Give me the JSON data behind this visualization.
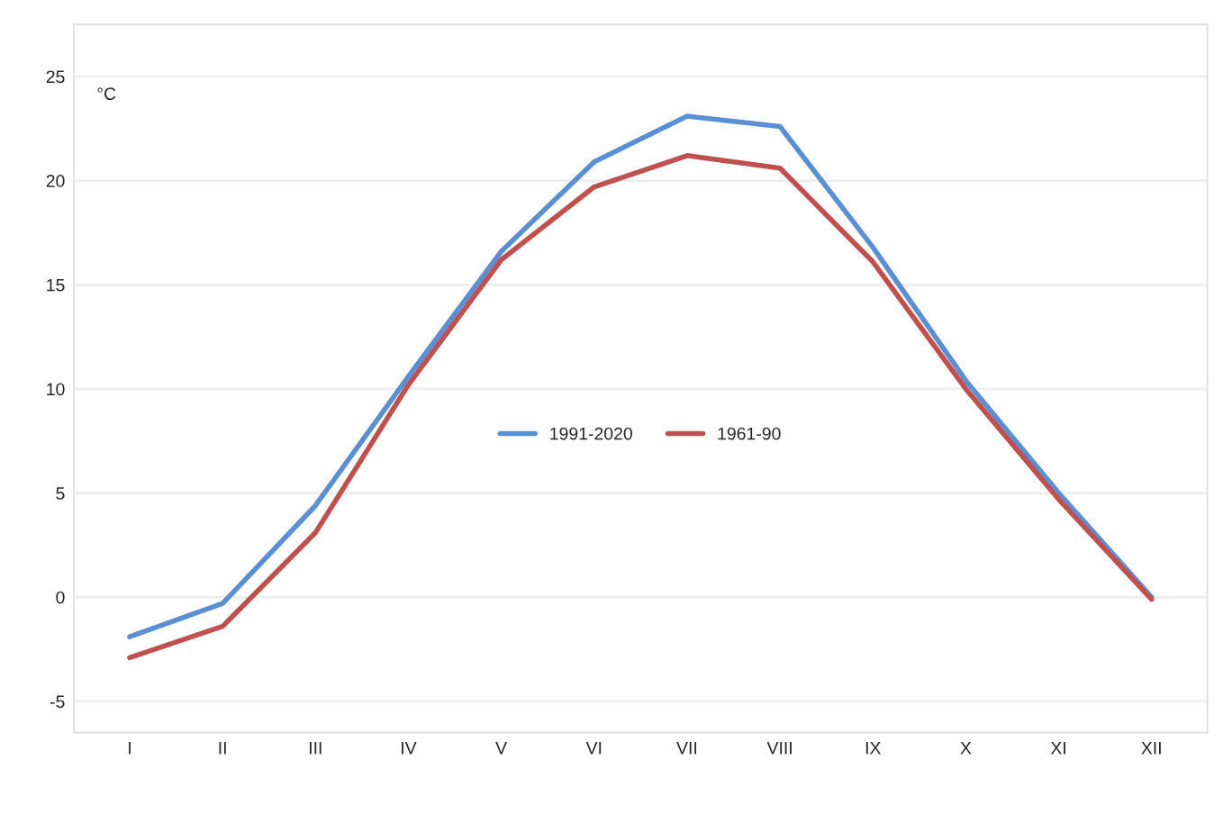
{
  "chart_data": {
    "type": "line",
    "ylabel": "°C",
    "categories": [
      "I",
      "II",
      "III",
      "IV",
      "V",
      "VI",
      "VII",
      "VIII",
      "IX",
      "X",
      "XI",
      "XII"
    ],
    "series": [
      {
        "name": "1991-2020",
        "color": "#5b8fd4",
        "values": [
          -1.9,
          -0.3,
          4.4,
          10.6,
          16.6,
          20.9,
          23.1,
          22.6,
          16.8,
          10.4,
          5.0,
          0.0
        ]
      },
      {
        "name": "1961-90",
        "color": "#c0504d",
        "values": [
          -2.9,
          -1.4,
          3.1,
          10.2,
          16.2,
          19.7,
          21.2,
          20.6,
          16.1,
          10.0,
          4.7,
          -0.1
        ]
      }
    ],
    "ylim": [
      -6.5,
      27.5
    ],
    "yticks": [
      -5,
      0,
      5,
      10,
      15,
      20,
      25
    ],
    "grid": "y",
    "legend": "center",
    "marker": "none",
    "line_style": "solid"
  }
}
